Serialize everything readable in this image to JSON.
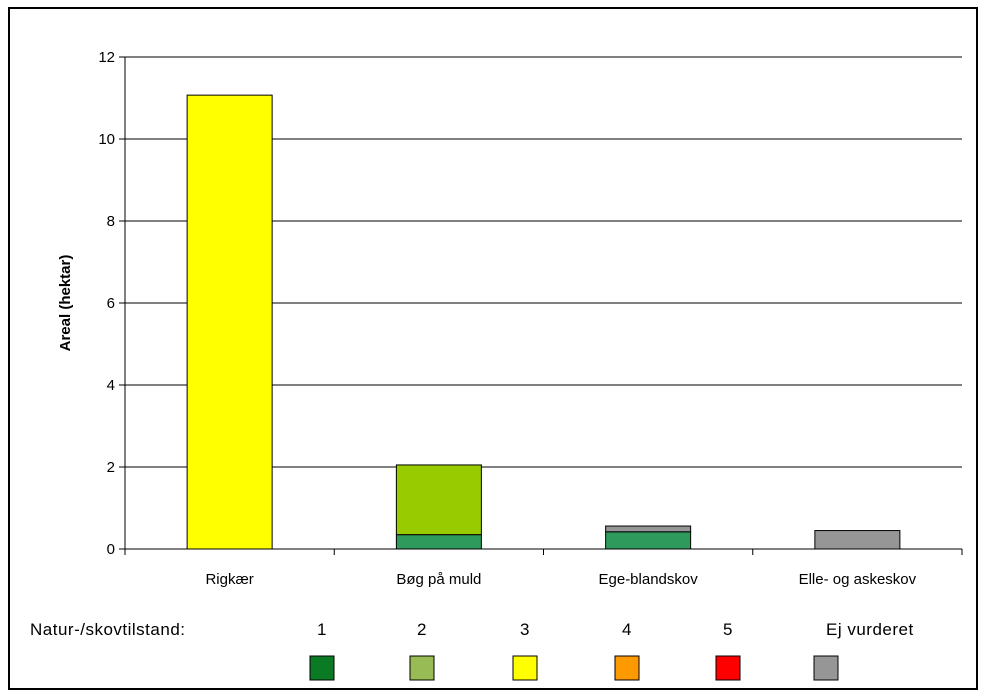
{
  "chart_data": {
    "type": "bar",
    "stacked": true,
    "categories": [
      "Rigkær",
      "Bøg på muld",
      "Ege-blandskov",
      "Elle- og askeskov"
    ],
    "series": [
      {
        "name": "1",
        "color": "#2e9a5c",
        "values": [
          0,
          0.35,
          0.42,
          0
        ]
      },
      {
        "name": "2",
        "color": "#99cc00",
        "values": [
          0,
          1.7,
          0,
          0
        ]
      },
      {
        "name": "3",
        "color": "#ffff00",
        "values": [
          11.07,
          0,
          0,
          0
        ]
      },
      {
        "name": "4",
        "color": "#ff9900",
        "values": [
          0,
          0,
          0,
          0
        ]
      },
      {
        "name": "5",
        "color": "#ff0000",
        "values": [
          0,
          0,
          0,
          0
        ]
      },
      {
        "name": "Ej vurderet",
        "color": "#969696",
        "values": [
          0,
          0,
          0.14,
          0.45
        ]
      }
    ],
    "ylabel": "Areal (hektar)",
    "ylim": [
      0,
      12
    ],
    "yticks": [
      0,
      2,
      4,
      6,
      8,
      10,
      12
    ],
    "grid": true,
    "legend": {
      "title": "Natur-/skovtilstand:",
      "placement": "bottom",
      "entries": [
        {
          "label": "1",
          "color": "#0b7a25"
        },
        {
          "label": "2",
          "color": "#99bb55"
        },
        {
          "label": "3",
          "color": "#ffff00"
        },
        {
          "label": "4",
          "color": "#ff9900"
        },
        {
          "label": "5",
          "color": "#ff0000"
        },
        {
          "label": "Ej vurderet",
          "color": "#969696"
        }
      ]
    }
  }
}
